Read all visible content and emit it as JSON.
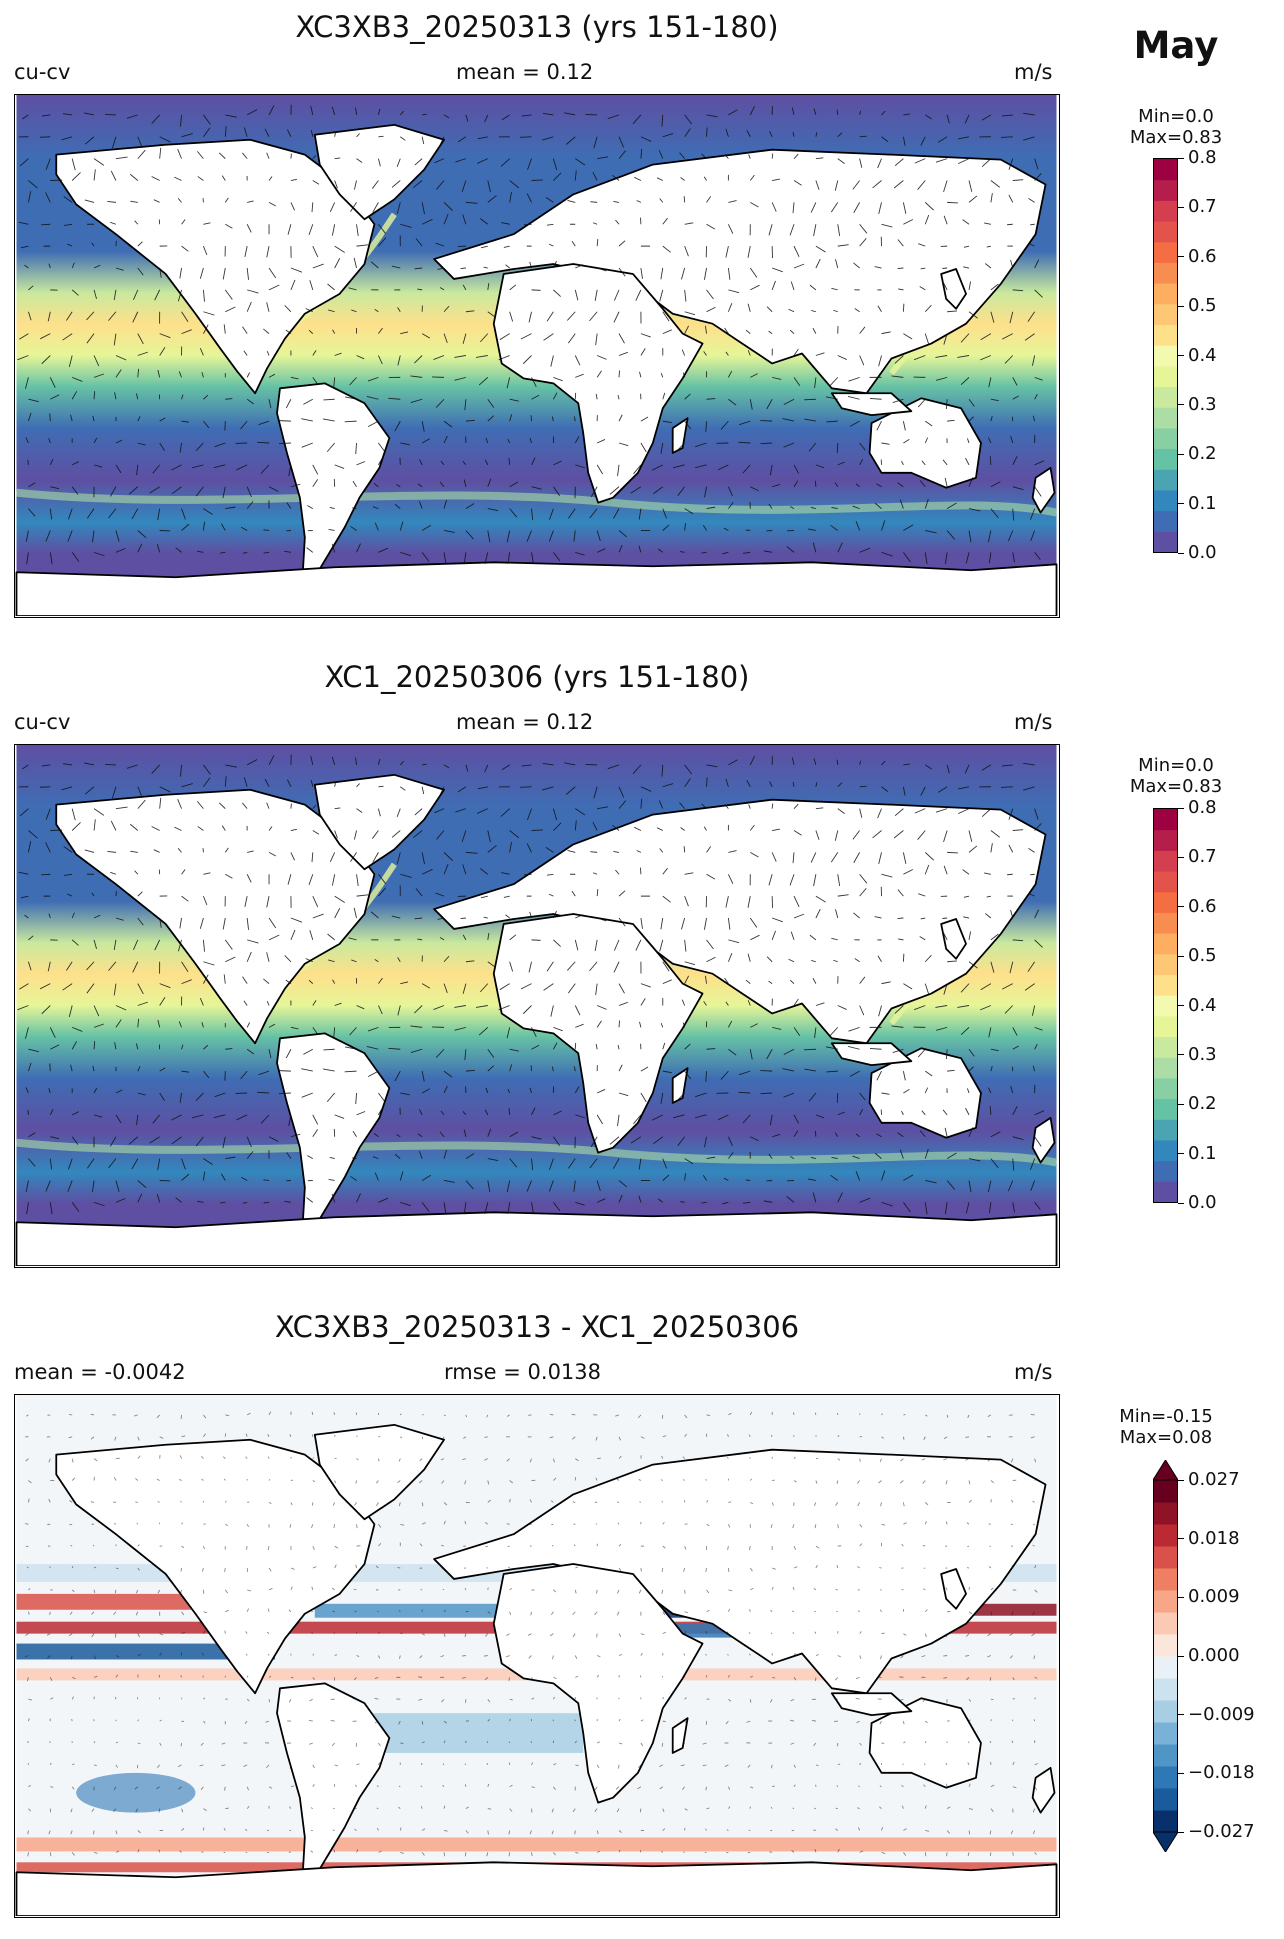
{
  "figure": {
    "month": "May",
    "panels": [
      {
        "title": "XC3XB3_20250313 (yrs 151-180)",
        "left_label": "cu-cv",
        "center_label": "mean = 0.12",
        "right_label": "m/s",
        "minmax": "Min=0.0\nMax=0.83",
        "colorbar": {
          "colors": [
            "#5e4fa2",
            "#3f6db4",
            "#3288bd",
            "#4ba4b1",
            "#66c2a5",
            "#88d0a4",
            "#abdda4",
            "#c9e99e",
            "#e6f598",
            "#f3fab0",
            "#fee08b",
            "#fdc776",
            "#fdae61",
            "#f88d52",
            "#f46d43",
            "#e3534b",
            "#d53e4f",
            "#b51d4b",
            "#9e0142"
          ],
          "ticks": [
            "0.0",
            "0.1",
            "0.2",
            "0.3",
            "0.4",
            "0.5",
            "0.6",
            "0.7",
            "0.8"
          ],
          "extend": "none"
        }
      },
      {
        "title": "XC1_20250306 (yrs 151-180)",
        "left_label": "cu-cv",
        "center_label": "mean = 0.12",
        "right_label": "m/s",
        "minmax": "Min=0.0\nMax=0.83",
        "colorbar": {
          "colors": [
            "#5e4fa2",
            "#3f6db4",
            "#3288bd",
            "#4ba4b1",
            "#66c2a5",
            "#88d0a4",
            "#abdda4",
            "#c9e99e",
            "#e6f598",
            "#f3fab0",
            "#fee08b",
            "#fdc776",
            "#fdae61",
            "#f88d52",
            "#f46d43",
            "#e3534b",
            "#d53e4f",
            "#b51d4b",
            "#9e0142"
          ],
          "ticks": [
            "0.0",
            "0.1",
            "0.2",
            "0.3",
            "0.4",
            "0.5",
            "0.6",
            "0.7",
            "0.8"
          ],
          "extend": "none"
        }
      },
      {
        "title": "XC3XB3_20250313 - XC1_20250306",
        "left_label": "mean = -0.0042",
        "center_label": "rmse = 0.0138",
        "right_label": "m/s",
        "minmax": "Min=-0.15\nMax=0.08",
        "colorbar": {
          "colors": [
            "#08306b",
            "#1a5b9c",
            "#2f78b6",
            "#4f95c6",
            "#79b2d6",
            "#a8cee4",
            "#cde2ef",
            "#e9f1f7",
            "#fbe6dc",
            "#fbcab5",
            "#f7a688",
            "#ee7f62",
            "#d9514a",
            "#bb2a33",
            "#8e1326",
            "#67001f"
          ],
          "ticks": [
            "−0.027",
            "−0.018",
            "−0.009",
            "0.000",
            "0.009",
            "0.018",
            "0.027"
          ],
          "extend": "both"
        }
      }
    ]
  },
  "colors": {
    "land": "#ffffff",
    "coast": "#000000",
    "speed_low": "#5e4fa2",
    "speed_mid": "#3f6db4",
    "speed_high": "#fee08b",
    "diff_zero": "#f3f6f9"
  }
}
